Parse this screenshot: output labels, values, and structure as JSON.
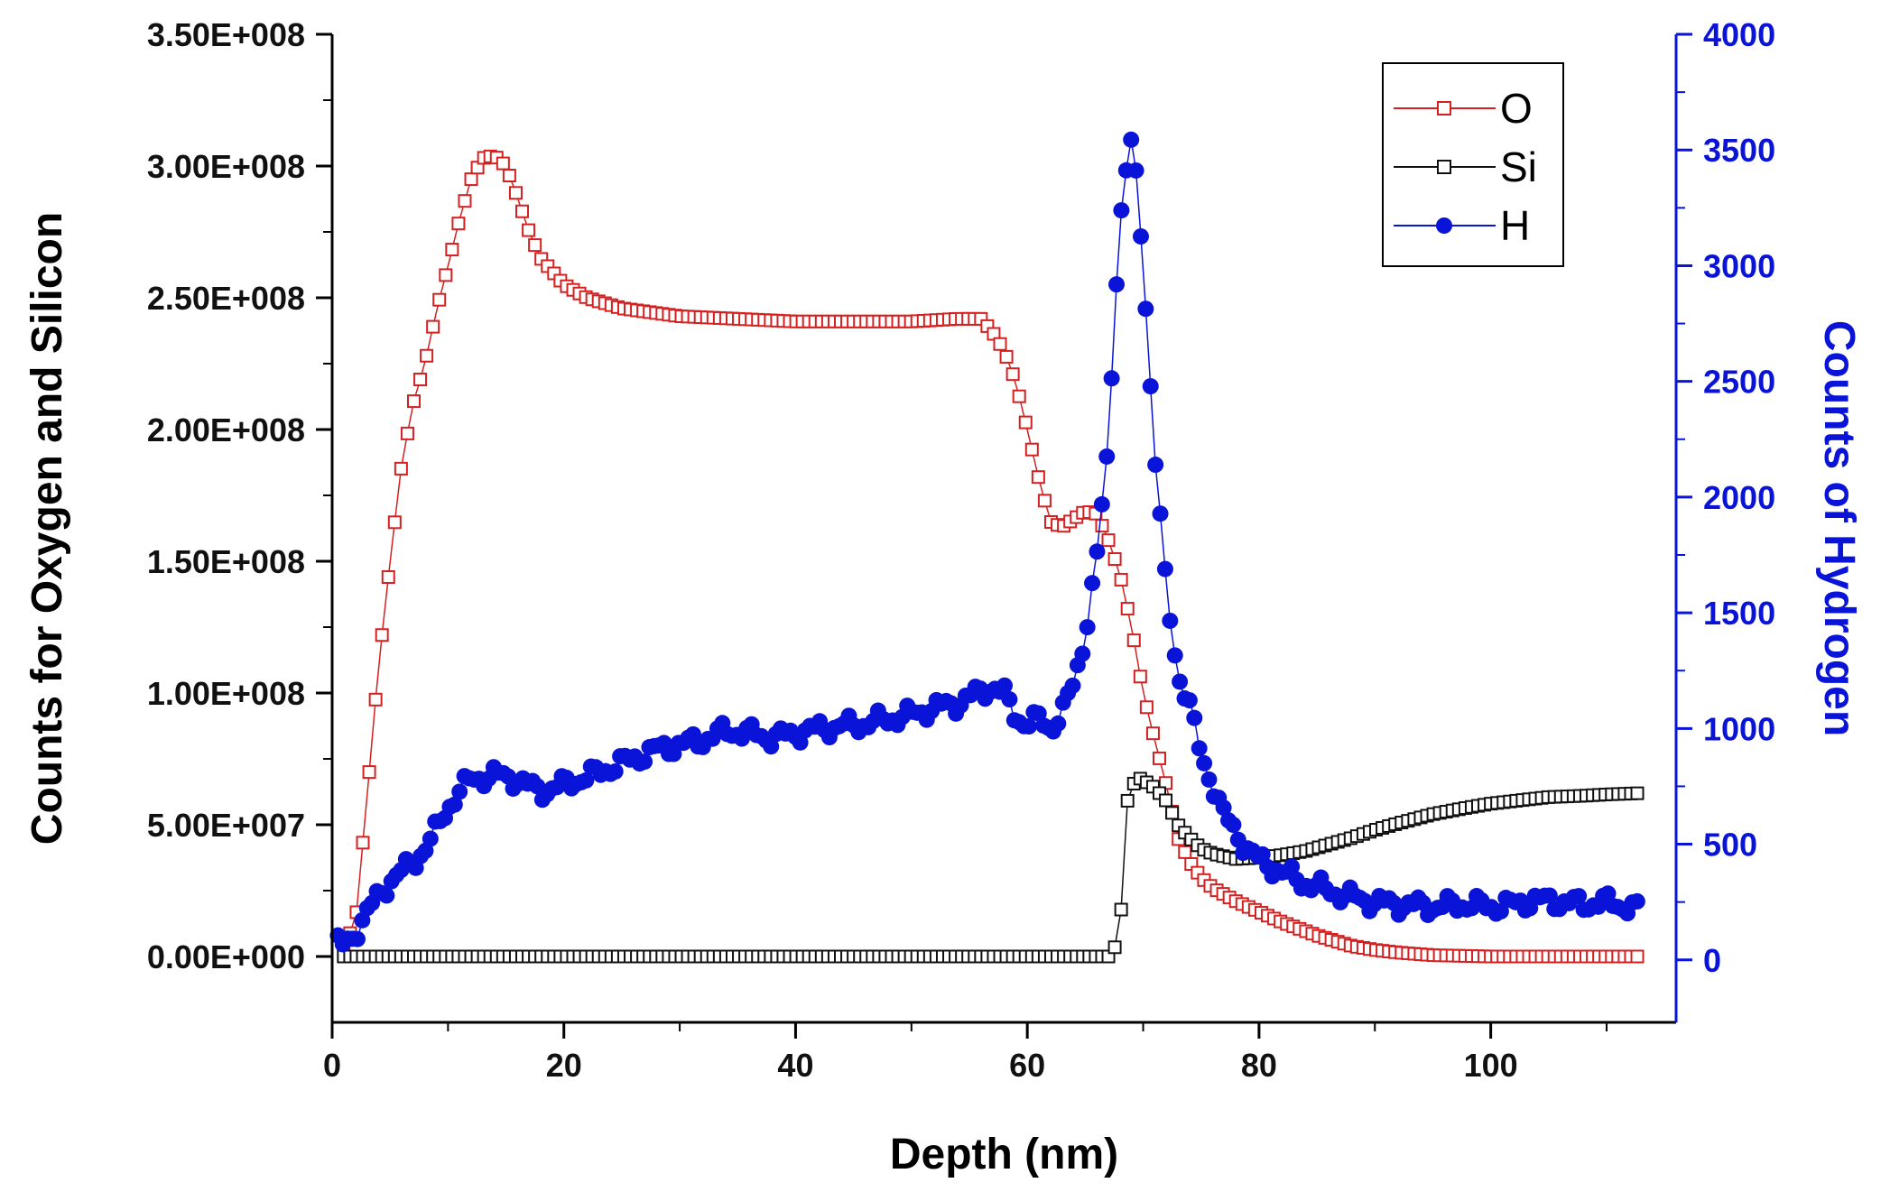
{
  "chart_data": {
    "type": "scatter",
    "xlabel": "Depth (nm)",
    "ylabel": "Counts for Oxygen and Silicon",
    "y2label": "Counts of Hydrogen",
    "xlim": [
      0,
      116
    ],
    "ylim": [
      -25000000.0,
      350000000.0
    ],
    "y2lim": [
      -270,
      4000
    ],
    "x_ticks": [
      "0",
      "20",
      "40",
      "60",
      "80",
      "100"
    ],
    "x_tick_values": [
      0,
      20,
      40,
      60,
      80,
      100
    ],
    "y_ticks": [
      "0.00E+000",
      "5.00E+007",
      "1.00E+008",
      "1.50E+008",
      "2.00E+008",
      "2.50E+008",
      "3.00E+008",
      "3.50E+008"
    ],
    "y_tick_values": [
      0,
      50000000.0,
      100000000.0,
      150000000.0,
      200000000.0,
      250000000.0,
      300000000.0,
      350000000.0
    ],
    "y2_ticks": [
      "0",
      "500",
      "1000",
      "1500",
      "2000",
      "2500",
      "3000",
      "3500",
      "4000"
    ],
    "y2_tick_values": [
      0,
      500,
      1000,
      1500,
      2000,
      2500,
      3000,
      3500,
      4000
    ],
    "grid": false,
    "legend_position": "top-right",
    "colors": {
      "O": "#d42020",
      "Si": "#111111",
      "H": "#0a14d8",
      "right_axis": "#0a14d8"
    },
    "series": [
      {
        "name": "O",
        "axis": "left",
        "marker": "open-square",
        "x": [
          1,
          2,
          3,
          4,
          5,
          6,
          7,
          8,
          9,
          10,
          11,
          12,
          13,
          14,
          15,
          16,
          17,
          18,
          20,
          22,
          25,
          30,
          35,
          40,
          45,
          50,
          54,
          56,
          57,
          58,
          59,
          60,
          61,
          62,
          63,
          64,
          65,
          66,
          67,
          68,
          69,
          70,
          71,
          72,
          73,
          74,
          75,
          76,
          78,
          80,
          82,
          85,
          88,
          90,
          92,
          95,
          100,
          105,
          110,
          113
        ],
        "y": [
          5000000.0,
          12000000.0,
          60000000.0,
          110000000.0,
          150000000.0,
          187000000.0,
          210000000.0,
          225000000.0,
          245000000.0,
          262000000.0,
          280000000.0,
          295000000.0,
          303000000.0,
          304000000.0,
          300000000.0,
          288000000.0,
          275000000.0,
          265000000.0,
          255000000.0,
          250000000.0,
          246000000.0,
          243000000.0,
          242000000.0,
          241000000.0,
          241000000.0,
          241000000.0,
          242000000.0,
          242000000.0,
          237000000.0,
          230000000.0,
          218000000.0,
          200000000.0,
          181000000.0,
          165000000.0,
          163000000.0,
          166000000.0,
          169000000.0,
          168000000.0,
          158000000.0,
          145000000.0,
          125000000.0,
          100000000.0,
          82000000.0,
          65000000.0,
          45000000.0,
          36000000.0,
          30000000.0,
          26000000.0,
          21000000.0,
          17000000.0,
          13000000.0,
          8000000.0,
          4000000.0,
          2500000.0,
          1500000.0,
          500000.0,
          0,
          0,
          0,
          0
        ]
      },
      {
        "name": "Si",
        "axis": "left",
        "marker": "open-square",
        "x": [
          1,
          5,
          10,
          20,
          30,
          40,
          50,
          60,
          66,
          67,
          67.5,
          68,
          68.5,
          69,
          69.5,
          70,
          71,
          72,
          73,
          74,
          75,
          76,
          77,
          78,
          80,
          82,
          84,
          86,
          88,
          90,
          92,
          95,
          98,
          100,
          103,
          105,
          108,
          110,
          113
        ],
        "y": [
          0,
          0,
          0,
          0,
          0,
          0,
          0,
          0,
          0,
          0,
          3000000.0,
          8000000.0,
          57000000.0,
          64000000.0,
          68000000.0,
          67000000.0,
          64000000.0,
          59000000.0,
          50000000.0,
          45000000.0,
          41000000.0,
          39000000.0,
          38000000.0,
          37000000.0,
          37500000.0,
          38500000.0,
          40000000.0,
          42500000.0,
          45000000.0,
          48000000.0,
          50500000.0,
          54000000.0,
          56500000.0,
          58000000.0,
          59500000.0,
          60500000.0,
          61000000.0,
          61500000.0,
          62000000.0
        ]
      },
      {
        "name": "H",
        "axis": "right",
        "marker": "filled-circle",
        "x": [
          0.5,
          1,
          2,
          3,
          4,
          5,
          6,
          7,
          8,
          9,
          10,
          11,
          12,
          13,
          14,
          15,
          16,
          17,
          18,
          19,
          20,
          22,
          24,
          26,
          28,
          30,
          32,
          34,
          36,
          38,
          40,
          42,
          44,
          46,
          48,
          50,
          52,
          54,
          56,
          57,
          58,
          59,
          60,
          61,
          62,
          63,
          64,
          65,
          66,
          67,
          67.5,
          68,
          68.5,
          69,
          69.5,
          70,
          70.5,
          71,
          72,
          73,
          74,
          75,
          76,
          77,
          78,
          79,
          80,
          82,
          84,
          86,
          88,
          90,
          92,
          95,
          98,
          100,
          102,
          104,
          106,
          108,
          110,
          112,
          113
        ],
        "y": [
          70,
          60,
          120,
          200,
          280,
          340,
          380,
          420,
          480,
          560,
          660,
          730,
          780,
          790,
          800,
          790,
          780,
          750,
          730,
          740,
          760,
          790,
          830,
          870,
          910,
          930,
          950,
          990,
          980,
          960,
          980,
          1000,
          1010,
          1020,
          1040,
          1060,
          1090,
          1110,
          1160,
          1180,
          1150,
          1050,
          1020,
          1040,
          1000,
          1070,
          1190,
          1410,
          1740,
          2220,
          2800,
          3180,
          3400,
          3530,
          3330,
          3030,
          2600,
          2190,
          1590,
          1240,
          1100,
          880,
          760,
          620,
          550,
          480,
          430,
          380,
          330,
          300,
          270,
          250,
          240,
          230,
          240,
          230,
          240,
          260,
          250,
          240,
          250,
          230,
          210
        ]
      }
    ]
  }
}
